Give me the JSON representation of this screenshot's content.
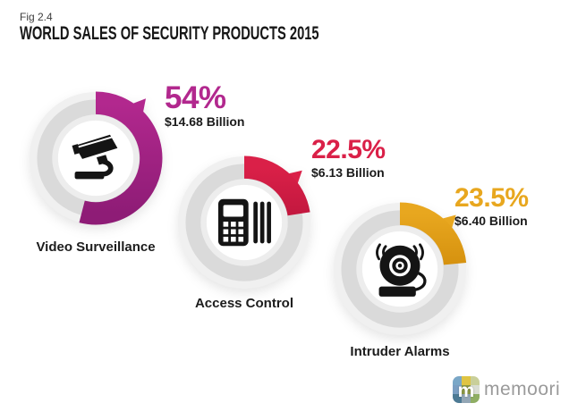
{
  "figure": {
    "fig_label": "Fig 2.4",
    "title": "WORLD SALES OF SECURITY PRODUCTS 2015"
  },
  "chart_data": {
    "type": "pie",
    "subtype": "three-donut-infographic",
    "title": "World Sales of Security Products 2015",
    "unit": "USD Billion",
    "total_percent": 100,
    "items": [
      {
        "label": "Video Surveillance",
        "percent": 54,
        "percent_label": "54%",
        "value_billion_usd": 14.68,
        "value_label": "$14.68 Billion",
        "color": "#b2288e",
        "color_dark": "#8e1c76",
        "icon": "cctv-camera",
        "arrow_angle_deg": 40
      },
      {
        "label": "Access Control",
        "percent": 22.5,
        "percent_label": "22.5%",
        "value_billion_usd": 6.13,
        "value_label": "$6.13 Billion",
        "color": "#da2048",
        "color_dark": "#c3183f",
        "icon": "keypad-card-reader",
        "arrow_angle_deg": 48
      },
      {
        "label": "Intruder Alarms",
        "percent": 23.5,
        "percent_label": "23.5%",
        "value_billion_usd": 6.4,
        "value_label": "$6.40 Billion",
        "color": "#e8a71f",
        "color_dark": "#d6920f",
        "icon": "alarm-bell",
        "arrow_angle_deg": 46
      }
    ],
    "ring_base_color": "#dadada",
    "legend_position": "none",
    "grid": false
  },
  "branding": {
    "logo_monogram": "m",
    "logo_text": "memoori",
    "logo_tile_colors": [
      "#7aa7c7",
      "#dfc443",
      "#c9cf9a",
      "#7a9ec2",
      "#8e9a45",
      "#d9ddd3",
      "#4d7a94",
      "#93a6b5",
      "#8fae64"
    ]
  }
}
